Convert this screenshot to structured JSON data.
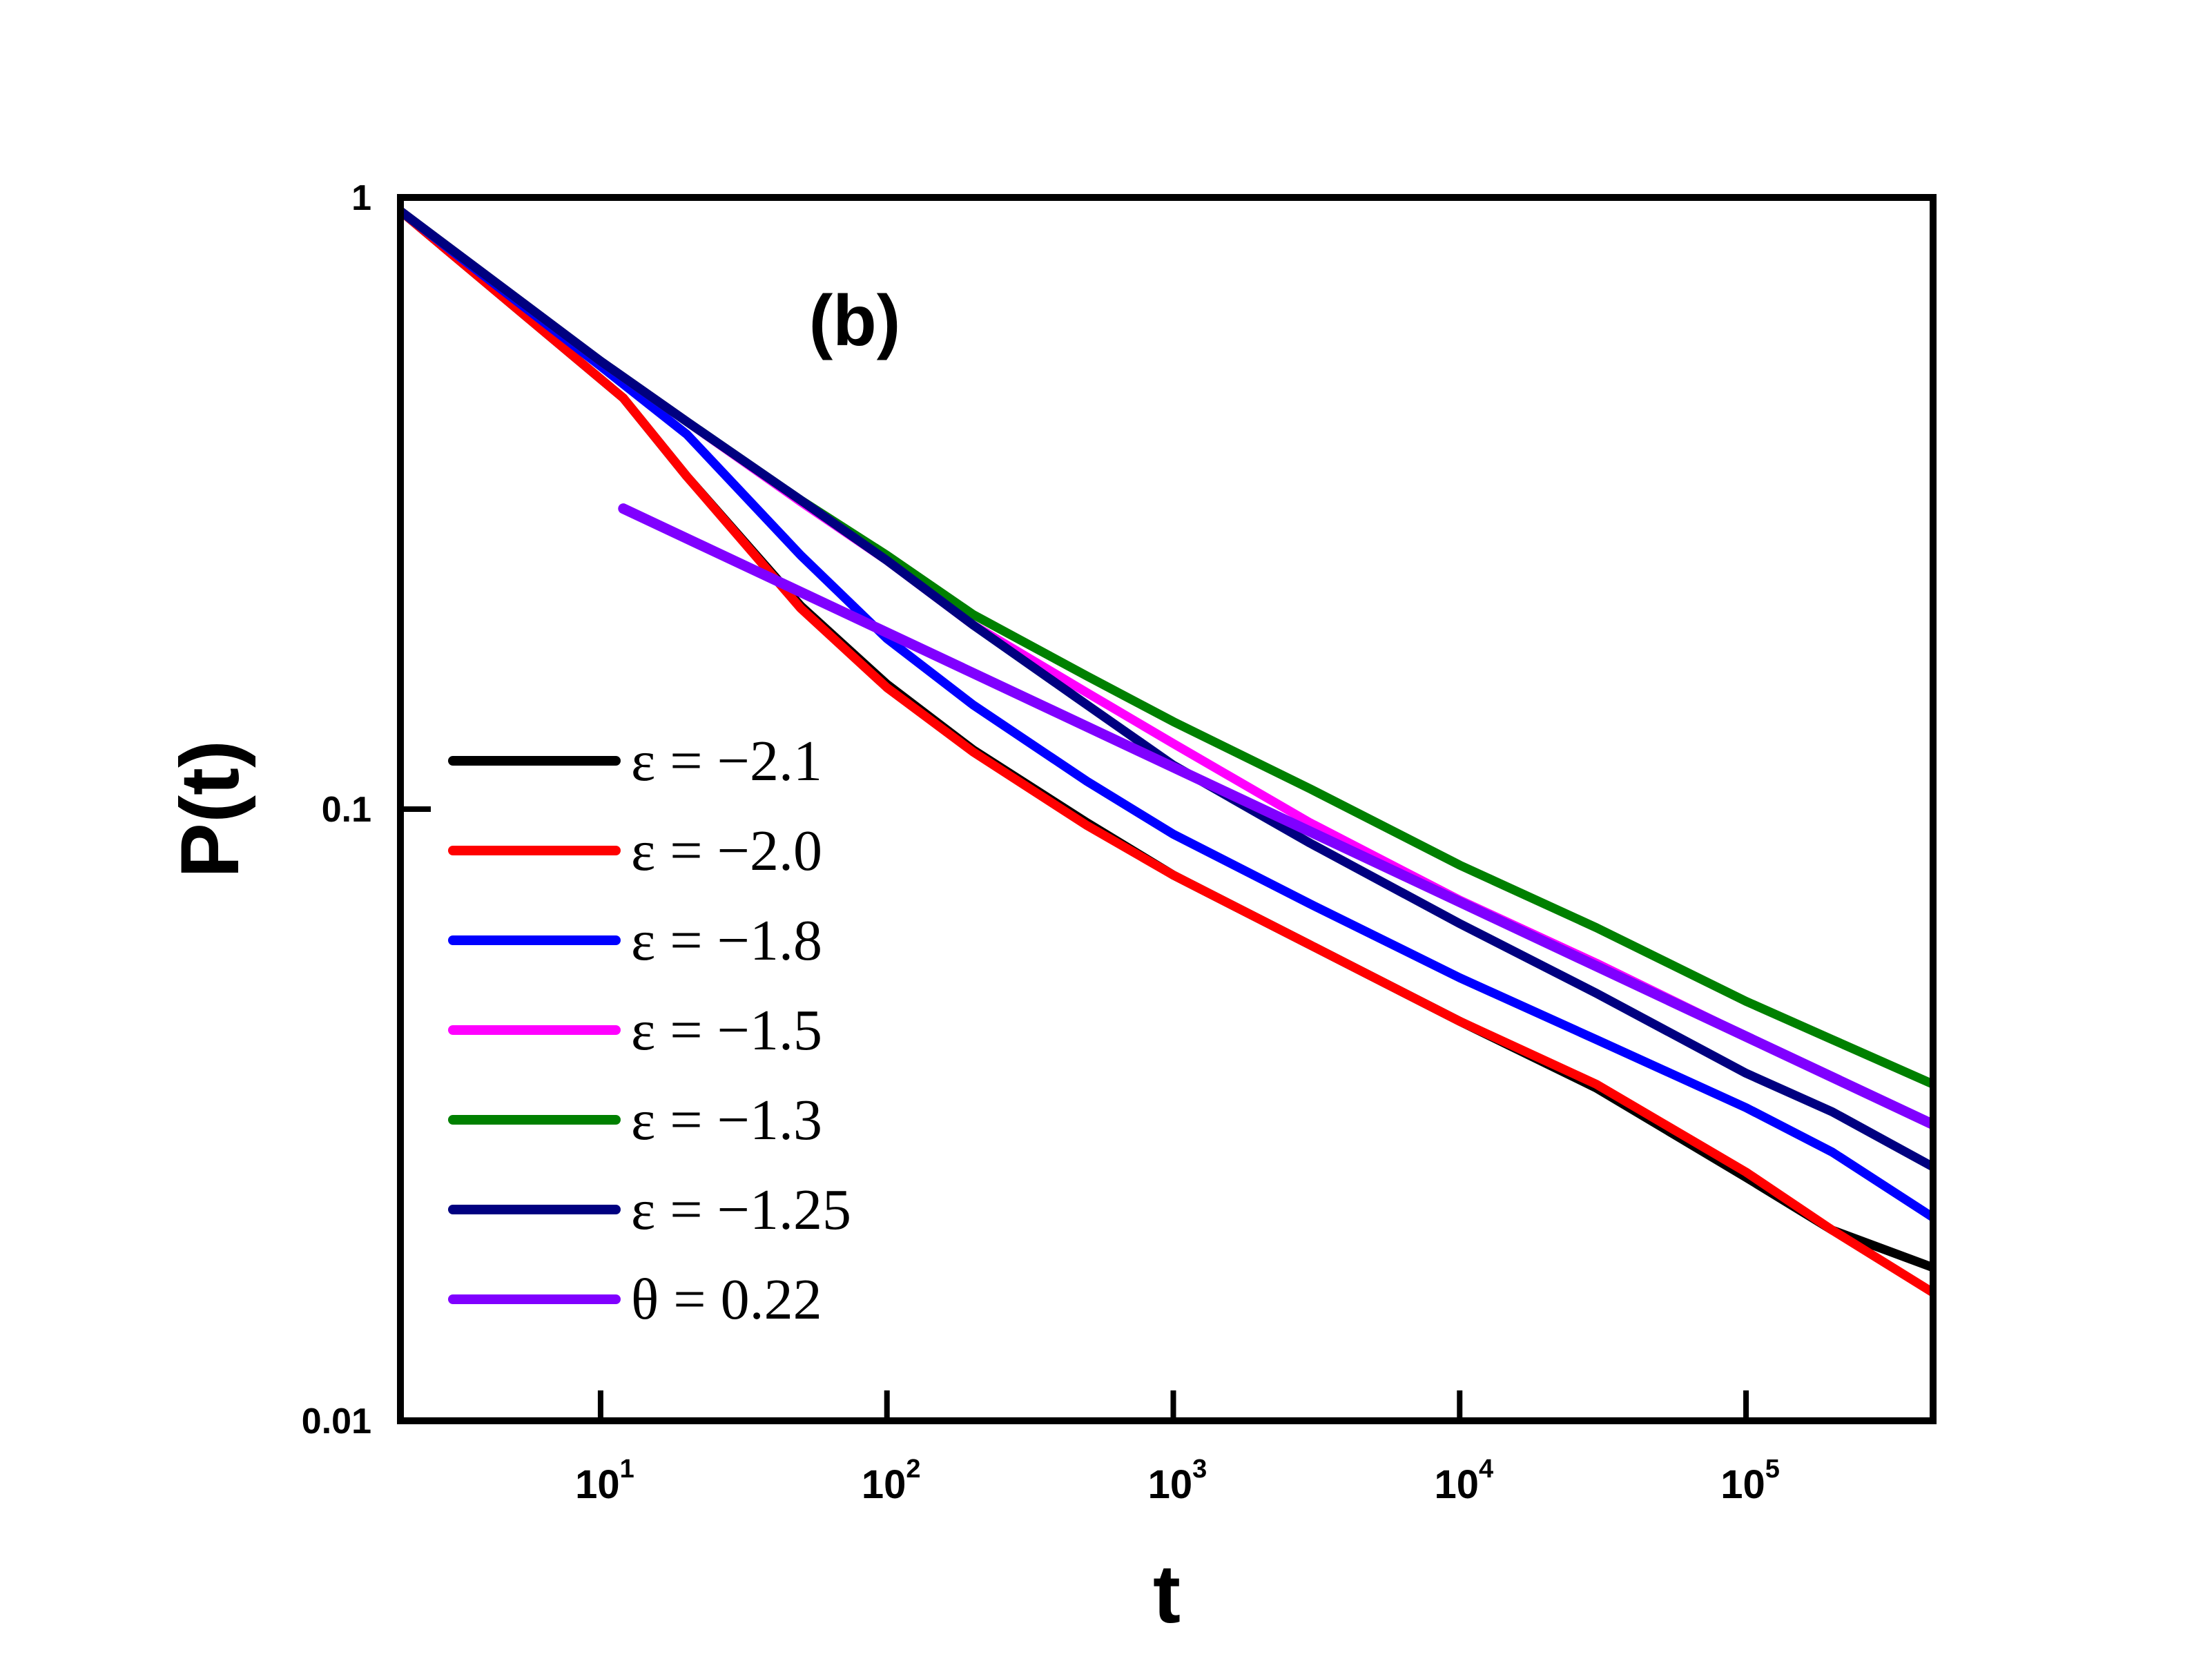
{
  "chart_data": {
    "type": "line",
    "panel_label": "(b)",
    "xlabel": "t",
    "ylabel": "P(t)",
    "xscale": "log",
    "yscale": "log",
    "xlim": [
      2,
      450000
    ],
    "ylim": [
      0.01,
      1
    ],
    "xticks": [
      {
        "value": 10,
        "base": "10",
        "exp": "1"
      },
      {
        "value": 100,
        "base": "10",
        "exp": "2"
      },
      {
        "value": 1000,
        "base": "10",
        "exp": "3"
      },
      {
        "value": 10000,
        "base": "10",
        "exp": "4"
      },
      {
        "value": 100000,
        "base": "10",
        "exp": "5"
      }
    ],
    "yticks": [
      {
        "value": 1,
        "label": "1"
      },
      {
        "value": 0.1,
        "label": "0.1"
      },
      {
        "value": 0.01,
        "label": "0.01"
      }
    ],
    "legend_position": "lower-left",
    "series": [
      {
        "name": "ε = −2.1",
        "color": "#000000",
        "x": [
          2,
          12,
          20,
          50,
          100,
          200,
          500,
          1000,
          3000,
          10000,
          30000,
          100000,
          200000,
          450000
        ],
        "y": [
          0.95,
          0.47,
          0.35,
          0.215,
          0.16,
          0.125,
          0.095,
          0.078,
          0.06,
          0.045,
          0.035,
          0.025,
          0.0205,
          0.0178
        ]
      },
      {
        "name": "ε = −2.0",
        "color": "#ff0000",
        "x": [
          2,
          12,
          20,
          50,
          100,
          200,
          500,
          1000,
          3000,
          10000,
          30000,
          100000,
          200000,
          450000
        ],
        "y": [
          0.95,
          0.47,
          0.35,
          0.213,
          0.158,
          0.124,
          0.094,
          0.078,
          0.06,
          0.045,
          0.0355,
          0.0255,
          0.0205,
          0.0162
        ]
      },
      {
        "name": "ε = −1.8",
        "color": "#0000ff",
        "x": [
          2,
          10,
          20,
          50,
          100,
          200,
          500,
          1000,
          3000,
          10000,
          30000,
          100000,
          200000,
          450000
        ],
        "y": [
          0.95,
          0.53,
          0.41,
          0.26,
          0.19,
          0.148,
          0.111,
          0.091,
          0.07,
          0.053,
          0.042,
          0.0325,
          0.0275,
          0.0215
        ]
      },
      {
        "name": "ε = −1.5",
        "color": "#ff00ff",
        "x": [
          2,
          10,
          20,
          50,
          100,
          200,
          500,
          1000,
          3000,
          10000,
          30000,
          100000,
          200000,
          450000
        ],
        "y": [
          0.95,
          0.54,
          0.43,
          0.318,
          0.255,
          0.2,
          0.155,
          0.128,
          0.095,
          0.071,
          0.056,
          0.0425,
          0.0365,
          0.0305
        ]
      },
      {
        "name": "ε = −1.3",
        "color": "#008000",
        "x": [
          2,
          10,
          20,
          50,
          100,
          200,
          500,
          1000,
          3000,
          10000,
          30000,
          100000,
          200000,
          450000
        ],
        "y": [
          0.95,
          0.54,
          0.43,
          0.32,
          0.26,
          0.208,
          0.165,
          0.139,
          0.108,
          0.081,
          0.064,
          0.0485,
          0.042,
          0.0355
        ]
      },
      {
        "name": "ε = −1.25",
        "color": "#000080",
        "x": [
          2,
          10,
          20,
          50,
          100,
          200,
          500,
          1000,
          3000,
          10000,
          30000,
          100000,
          200000,
          450000
        ],
        "y": [
          0.95,
          0.54,
          0.43,
          0.32,
          0.255,
          0.2,
          0.148,
          0.118,
          0.088,
          0.065,
          0.05,
          0.037,
          0.032,
          0.026
        ]
      },
      {
        "name": "θ = 0.22",
        "color": "#8000ff",
        "x": [
          12,
          450000
        ],
        "y": [
          0.31,
          0.0305
        ]
      }
    ]
  }
}
